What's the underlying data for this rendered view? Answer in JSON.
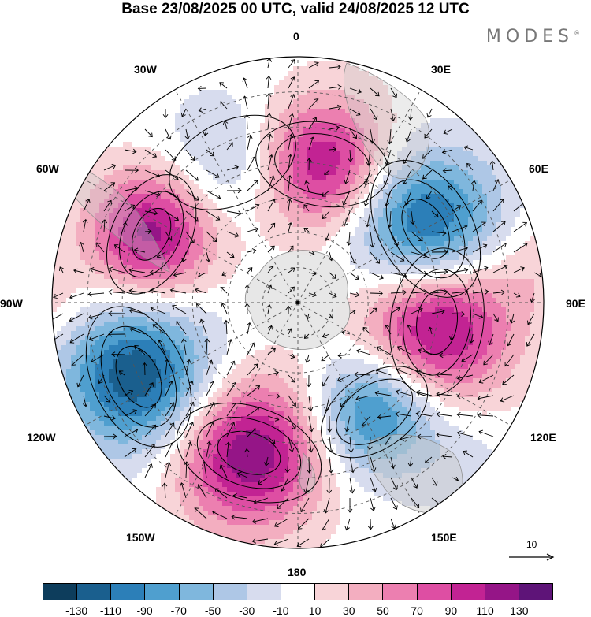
{
  "title": "Base 23/08/2025 00 UTC, valid 24/08/2025 12 UTC",
  "brand": "MODES",
  "brand_mark": "®",
  "lon_labels": {
    "n": "0",
    "ne1": "30E",
    "ne2": "60E",
    "e": "90E",
    "se1": "120E",
    "se2": "150E",
    "s": "180",
    "sw1": "150W",
    "sw2": "120W",
    "w": "90W",
    "nw1": "60W",
    "nw2": "30W"
  },
  "reference_vector": {
    "value": "10"
  },
  "colorbar": {
    "colors": [
      "#0d3d5c",
      "#1a5f8e",
      "#2c7fb8",
      "#4f9fcf",
      "#7fb7dd",
      "#aec7e6",
      "#d7dcee",
      "#ffffff",
      "#f8d4d8",
      "#f3aec0",
      "#ec7fb0",
      "#de4ea3",
      "#c22393",
      "#951587",
      "#5e1478"
    ],
    "ticks": [
      "-130",
      "-110",
      "-90",
      "-70",
      "-50",
      "-30",
      "-10",
      "10",
      "30",
      "50",
      "70",
      "90",
      "110",
      "130"
    ]
  },
  "map_data": {
    "projection": "south polar stereographic",
    "field_range": [
      -140,
      140
    ],
    "anomaly_centers": [
      {
        "lon": 10,
        "colat": 40,
        "value": 115,
        "r": 18
      },
      {
        "lon": 60,
        "colat": 42,
        "value": -130,
        "r": 20
      },
      {
        "lon": 98,
        "colat": 40,
        "value": 135,
        "r": 20
      },
      {
        "lon": 145,
        "colat": 38,
        "value": -105,
        "r": 16
      },
      {
        "lon": -162,
        "colat": 45,
        "value": 130,
        "r": 20
      },
      {
        "lon": -115,
        "colat": 50,
        "value": -130,
        "r": 20
      },
      {
        "lon": -65,
        "colat": 46,
        "value": 120,
        "r": 17
      },
      {
        "lon": -25,
        "colat": 44,
        "value": -45,
        "r": 18
      },
      {
        "lon": 80,
        "colat": 70,
        "value": 25,
        "r": 14
      },
      {
        "lon": -90,
        "colat": 72,
        "value": 25,
        "r": 12
      },
      {
        "lon": 135,
        "colat": 65,
        "value": -20,
        "r": 14
      }
    ]
  }
}
